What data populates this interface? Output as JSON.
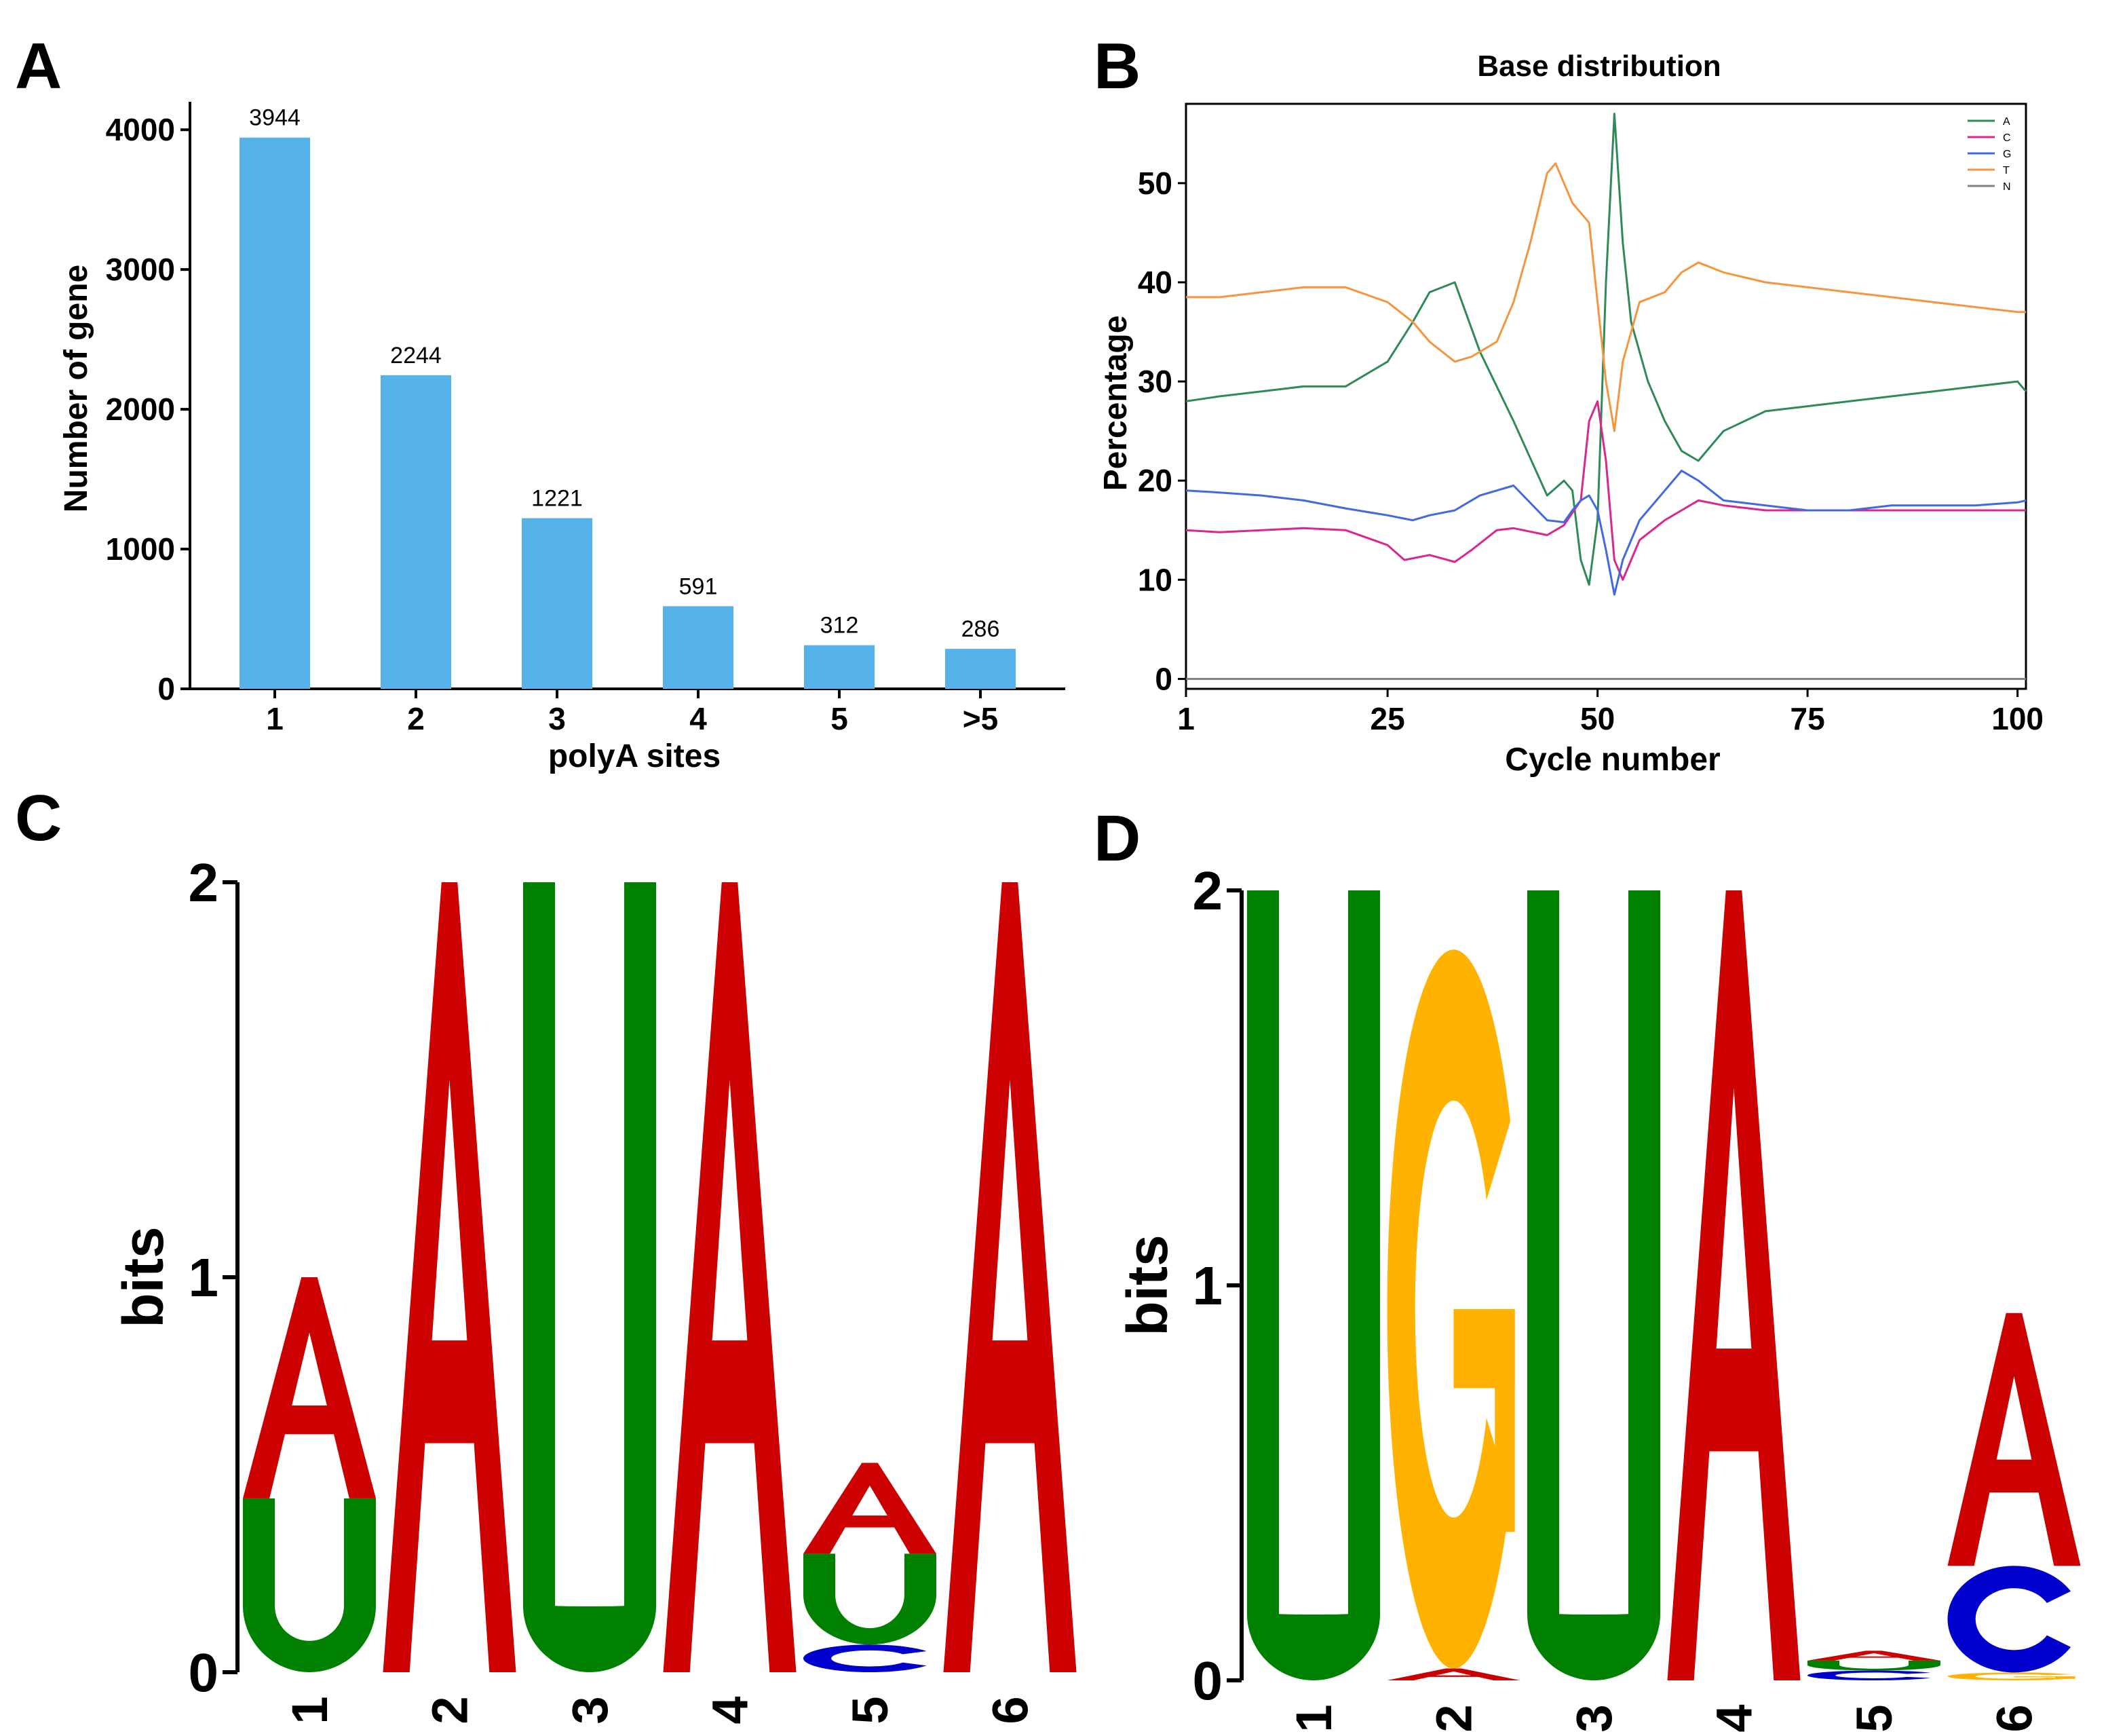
{
  "panels": {
    "a": "A",
    "b": "B",
    "c": "C",
    "d": "D"
  },
  "chart_data": [
    {
      "type": "bar",
      "panel": "A",
      "categories": [
        "1",
        "2",
        "3",
        "4",
        "5",
        ">5"
      ],
      "values": [
        3944,
        2244,
        1221,
        591,
        312,
        286
      ],
      "data_labels": [
        "3944",
        "2244",
        "1221",
        "591",
        "312",
        "286"
      ],
      "xlabel": "polyA sites",
      "ylabel": "Number of gene",
      "ylim": [
        0,
        4200
      ],
      "yticks": [
        0,
        1000,
        2000,
        3000,
        4000
      ],
      "ytick_labels": [
        "0",
        "1000",
        "2000",
        "3000",
        "4000"
      ],
      "color": "#56b3e9",
      "grid": false
    },
    {
      "type": "line",
      "panel": "B",
      "title": "Base distribution",
      "xlabel": "Cycle number",
      "ylabel": "Percentage",
      "xlim": [
        1,
        101
      ],
      "ylim": [
        -1,
        58
      ],
      "xticks": [
        1,
        25,
        50,
        75,
        100
      ],
      "xtick_labels": [
        "1",
        "25",
        "50",
        "75",
        "100"
      ],
      "yticks": [
        0,
        10,
        20,
        30,
        40,
        50
      ],
      "ytick_labels": [
        "0",
        "10",
        "20",
        "30",
        "40",
        "50"
      ],
      "legend": "top-right",
      "grid": false,
      "series": [
        {
          "name": "A",
          "color": "#2e8b57",
          "x": [
            1,
            5,
            10,
            15,
            20,
            25,
            28,
            30,
            33,
            36,
            40,
            44,
            46,
            47,
            48,
            49,
            50,
            51,
            52,
            53,
            54,
            56,
            58,
            60,
            62,
            65,
            70,
            75,
            80,
            85,
            90,
            95,
            100,
            101
          ],
          "y": [
            28,
            28.5,
            29,
            29.5,
            29.5,
            32,
            36,
            39,
            40,
            33,
            26,
            18.5,
            20,
            19,
            12,
            9.5,
            16,
            40,
            57,
            44,
            36,
            30,
            26,
            23,
            22,
            25,
            27,
            27.5,
            28,
            28.5,
            29,
            29.5,
            30,
            29
          ]
        },
        {
          "name": "C",
          "color": "#d9278c",
          "x": [
            1,
            5,
            10,
            15,
            20,
            25,
            27,
            30,
            33,
            35,
            38,
            40,
            44,
            46,
            48,
            49,
            50,
            51,
            52,
            53,
            55,
            58,
            60,
            62,
            65,
            70,
            75,
            80,
            85,
            90,
            95,
            100,
            101
          ],
          "y": [
            15,
            14.8,
            15,
            15.2,
            15,
            13.5,
            12,
            12.5,
            11.8,
            13,
            15,
            15.2,
            14.5,
            15.5,
            18,
            26,
            28,
            22,
            12,
            10,
            14,
            16,
            17,
            18,
            17.5,
            17,
            17,
            17,
            17,
            17,
            17,
            17,
            17
          ]
        },
        {
          "name": "G",
          "color": "#4169e1",
          "x": [
            1,
            5,
            10,
            15,
            20,
            25,
            28,
            30,
            33,
            36,
            40,
            44,
            46,
            47,
            48,
            49,
            50,
            51,
            52,
            53,
            55,
            57,
            58,
            60,
            62,
            65,
            70,
            75,
            80,
            85,
            90,
            95,
            100,
            101
          ],
          "y": [
            19,
            18.8,
            18.5,
            18,
            17.2,
            16.5,
            16,
            16.5,
            17,
            18.5,
            19.5,
            16,
            15.8,
            17,
            18,
            18.5,
            17,
            13,
            8.5,
            12,
            16,
            18,
            19,
            21,
            20,
            18,
            17.5,
            17,
            17,
            17.5,
            17.5,
            17.5,
            17.8,
            18
          ]
        },
        {
          "name": "T",
          "color": "#f5953f",
          "x": [
            1,
            5,
            10,
            15,
            20,
            25,
            28,
            30,
            33,
            35,
            38,
            40,
            42,
            44,
            45,
            47,
            48,
            49,
            50,
            51,
            52,
            53,
            55,
            58,
            60,
            62,
            65,
            70,
            75,
            80,
            85,
            90,
            95,
            100,
            101
          ],
          "y": [
            38.5,
            38.5,
            39,
            39.5,
            39.5,
            38,
            36,
            34,
            32,
            32.5,
            34,
            38,
            44,
            51,
            52,
            48,
            47,
            46,
            38,
            30,
            25,
            32,
            38,
            39,
            41,
            42,
            41,
            40,
            39.5,
            39,
            38.5,
            38,
            37.5,
            37,
            37
          ]
        },
        {
          "name": "N",
          "color": "#808080",
          "x": [
            1,
            101
          ],
          "y": [
            0,
            0
          ]
        }
      ]
    },
    {
      "type": "sequence-logo",
      "panel": "C",
      "ylabel": "bits",
      "ylim": [
        0,
        2
      ],
      "yticks": [
        0,
        1,
        2
      ],
      "ytick_labels": [
        "0",
        "1",
        "2"
      ],
      "positions": [
        "1",
        "2",
        "3",
        "4",
        "5",
        "6"
      ],
      "colors": {
        "A": "#cc0000",
        "U": "#008000",
        "C": "#0000cc",
        "G": "#ffb300"
      },
      "stacks": [
        [
          {
            "base": "U",
            "bits": 0.44
          },
          {
            "base": "A",
            "bits": 0.56
          }
        ],
        [
          {
            "base": "A",
            "bits": 2.0
          }
        ],
        [
          {
            "base": "U",
            "bits": 2.0
          }
        ],
        [
          {
            "base": "A",
            "bits": 2.0
          }
        ],
        [
          {
            "base": "C",
            "bits": 0.07
          },
          {
            "base": "U",
            "bits": 0.23
          },
          {
            "base": "A",
            "bits": 0.23
          }
        ],
        [
          {
            "base": "A",
            "bits": 2.0
          }
        ]
      ]
    },
    {
      "type": "sequence-logo",
      "panel": "D",
      "ylabel": "bits",
      "ylim": [
        0,
        2
      ],
      "yticks": [
        0,
        1,
        2
      ],
      "ytick_labels": [
        "0",
        "1",
        "2"
      ],
      "positions": [
        "1",
        "2",
        "3",
        "4",
        "5",
        "6"
      ],
      "colors": {
        "A": "#cc0000",
        "U": "#008000",
        "C": "#0000cc",
        "G": "#ffb300"
      },
      "stacks": [
        [
          {
            "base": "U",
            "bits": 2.0
          }
        ],
        [
          {
            "base": "A",
            "bits": 0.03
          },
          {
            "base": "G",
            "bits": 1.82
          }
        ],
        [
          {
            "base": "U",
            "bits": 2.0
          }
        ],
        [
          {
            "base": "A",
            "bits": 2.0
          }
        ],
        [
          {
            "base": "C",
            "bits": 0.025
          },
          {
            "base": "U",
            "bits": 0.025
          },
          {
            "base": "A",
            "bits": 0.025
          }
        ],
        [
          {
            "base": "G",
            "bits": 0.02
          },
          {
            "base": "C",
            "bits": 0.27
          },
          {
            "base": "A",
            "bits": 0.64
          }
        ]
      ]
    }
  ]
}
